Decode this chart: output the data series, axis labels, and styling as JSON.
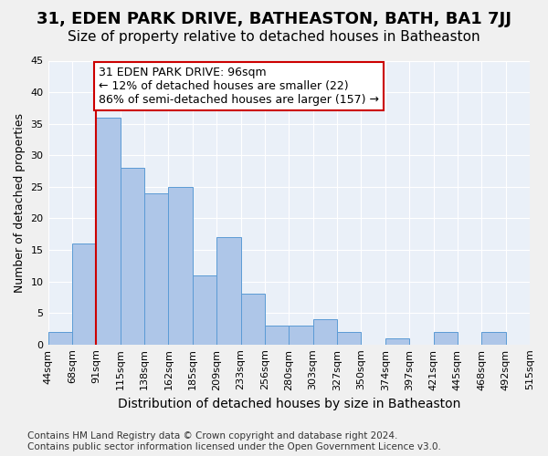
{
  "title": "31, EDEN PARK DRIVE, BATHEASTON, BATH, BA1 7JJ",
  "subtitle": "Size of property relative to detached houses in Batheaston",
  "xlabel": "Distribution of detached houses by size in Batheaston",
  "ylabel": "Number of detached properties",
  "bin_labels": [
    "44sqm",
    "68sqm",
    "91sqm",
    "115sqm",
    "138sqm",
    "162sqm",
    "185sqm",
    "209sqm",
    "233sqm",
    "256sqm",
    "280sqm",
    "303sqm",
    "327sqm",
    "350sqm",
    "374sqm",
    "397sqm",
    "421sqm",
    "445sqm",
    "468sqm",
    "492sqm",
    "515sqm"
  ],
  "bar_values": [
    2,
    16,
    36,
    28,
    24,
    25,
    11,
    17,
    8,
    3,
    3,
    4,
    2,
    0,
    1,
    0,
    2,
    0,
    2,
    0
  ],
  "bar_color": "#aec6e8",
  "bar_edge_color": "#5b9bd5",
  "background_color": "#eaf0f8",
  "grid_color": "#ffffff",
  "red_line_x": 2.0,
  "annotation_line1": "31 EDEN PARK DRIVE: 96sqm",
  "annotation_line2": "← 12% of detached houses are smaller (22)",
  "annotation_line3": "86% of semi-detached houses are larger (157) →",
  "annotation_box_color": "#ffffff",
  "annotation_box_edge_color": "#cc0000",
  "footer_line1": "Contains HM Land Registry data © Crown copyright and database right 2024.",
  "footer_line2": "Contains public sector information licensed under the Open Government Licence v3.0.",
  "ylim": [
    0,
    45
  ],
  "yticks": [
    0,
    5,
    10,
    15,
    20,
    25,
    30,
    35,
    40,
    45
  ],
  "title_fontsize": 13,
  "subtitle_fontsize": 11,
  "xlabel_fontsize": 10,
  "ylabel_fontsize": 9,
  "tick_fontsize": 8,
  "annotation_fontsize": 9,
  "footer_fontsize": 7.5
}
